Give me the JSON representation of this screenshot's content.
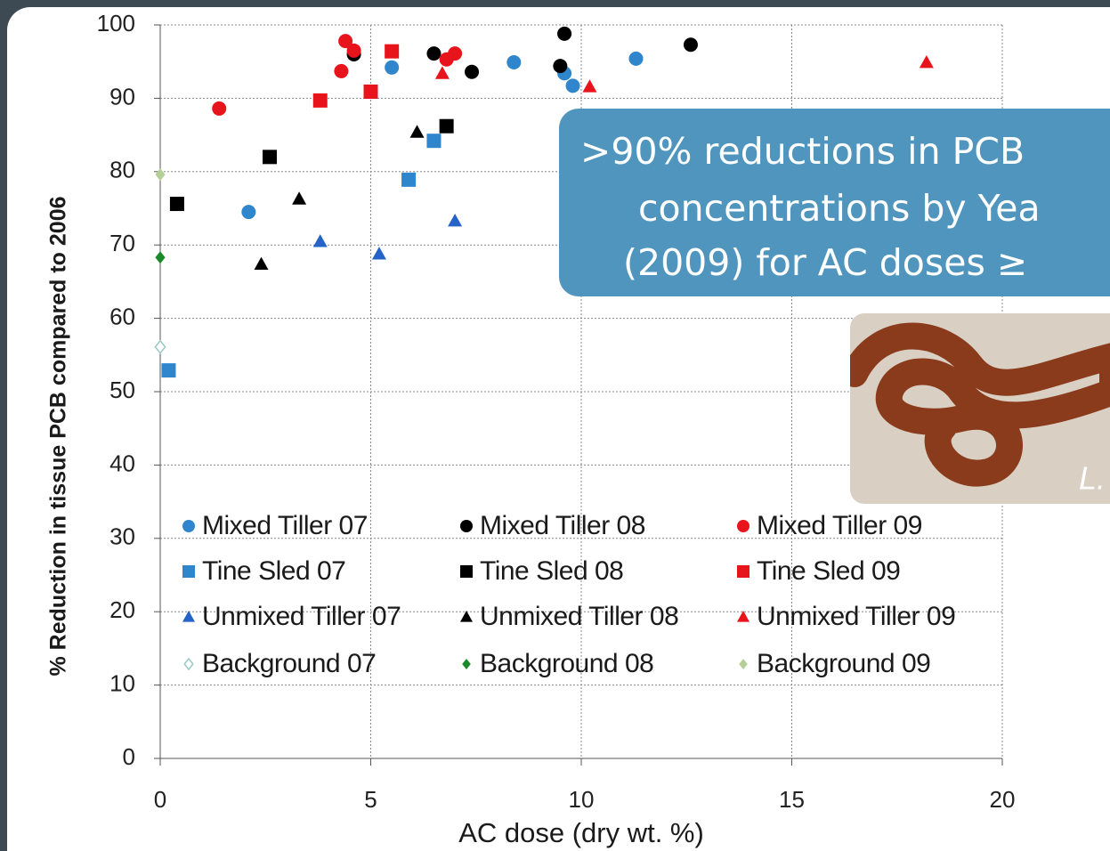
{
  "chart_data": {
    "type": "scatter",
    "y_label": "% Reduction in tissue PCB compared to 2006",
    "x_label": "AC dose (dry wt. %)",
    "xlim": [
      0,
      20
    ],
    "xticks": [
      0,
      5,
      10,
      15,
      20
    ],
    "ylim": [
      0,
      100
    ],
    "yticks": [
      0,
      10,
      20,
      30,
      40,
      50,
      60,
      70,
      80,
      90,
      100
    ],
    "grid": true,
    "series": [
      {
        "name": "Mixed Tiller 07",
        "color": "#2f86cc",
        "marker": "circle",
        "x": [
          2.1,
          5.5,
          8.4,
          9.6,
          9.8,
          11.3
        ],
        "values": [
          74.5,
          94.2,
          94.9,
          93.4,
          91.7,
          95.4
        ]
      },
      {
        "name": "Mixed Tiller 08",
        "color": "#000000",
        "marker": "circle",
        "x": [
          4.6,
          6.5,
          7.4,
          9.5,
          9.6,
          12.6
        ],
        "values": [
          96.0,
          96.1,
          93.6,
          94.4,
          98.8,
          97.3
        ]
      },
      {
        "name": "Mixed Tiller 09",
        "color": "#e8141b",
        "marker": "circle",
        "x": [
          1.4,
          4.3,
          4.4,
          4.6,
          6.8,
          7.0
        ],
        "values": [
          88.6,
          93.7,
          97.8,
          96.5,
          95.3,
          96.1
        ]
      },
      {
        "name": "Tine Sled 07",
        "color": "#2f86cc",
        "marker": "square",
        "x": [
          0.2,
          5.9,
          6.5
        ],
        "values": [
          52.9,
          78.9,
          84.2
        ]
      },
      {
        "name": "Tine Sled 08",
        "color": "#000000",
        "marker": "square",
        "x": [
          0.4,
          2.6,
          6.8
        ],
        "values": [
          75.6,
          82.0,
          86.2
        ]
      },
      {
        "name": "Tine Sled 09",
        "color": "#e8141b",
        "marker": "square",
        "x": [
          3.8,
          5.0,
          5.5
        ],
        "values": [
          89.7,
          90.9,
          96.4
        ]
      },
      {
        "name": "Unmixed Tiller 07",
        "color": "#2563c9",
        "marker": "triangle",
        "x": [
          3.8,
          5.2,
          7.0
        ],
        "values": [
          70.5,
          68.8,
          73.3
        ]
      },
      {
        "name": "Unmixed Tiller 08",
        "color": "#000000",
        "marker": "triangle",
        "x": [
          2.4,
          3.3,
          6.1
        ],
        "values": [
          67.4,
          76.3,
          85.4
        ]
      },
      {
        "name": "Unmixed Tiller 09",
        "color": "#e8141b",
        "marker": "triangle",
        "x": [
          6.7,
          10.2,
          18.2
        ],
        "values": [
          93.4,
          91.6,
          94.9
        ]
      },
      {
        "name": "Background 07",
        "color": "#9cc9c3",
        "marker": "diamond-open",
        "x": [
          0
        ],
        "values": [
          56.1
        ]
      },
      {
        "name": "Background 08",
        "color": "#1a8a2a",
        "marker": "diamond",
        "x": [
          0
        ],
        "values": [
          68.3
        ]
      },
      {
        "name": "Background 09",
        "color": "#b5cf98",
        "marker": "diamond",
        "x": [
          0
        ],
        "values": [
          79.6
        ]
      }
    ]
  },
  "callout": {
    "lines": [
      ">90% reductions in PCB",
      "concentrations by Yea",
      "(2009) for AC doses ≥"
    ]
  },
  "photo": {
    "caption": "L."
  }
}
